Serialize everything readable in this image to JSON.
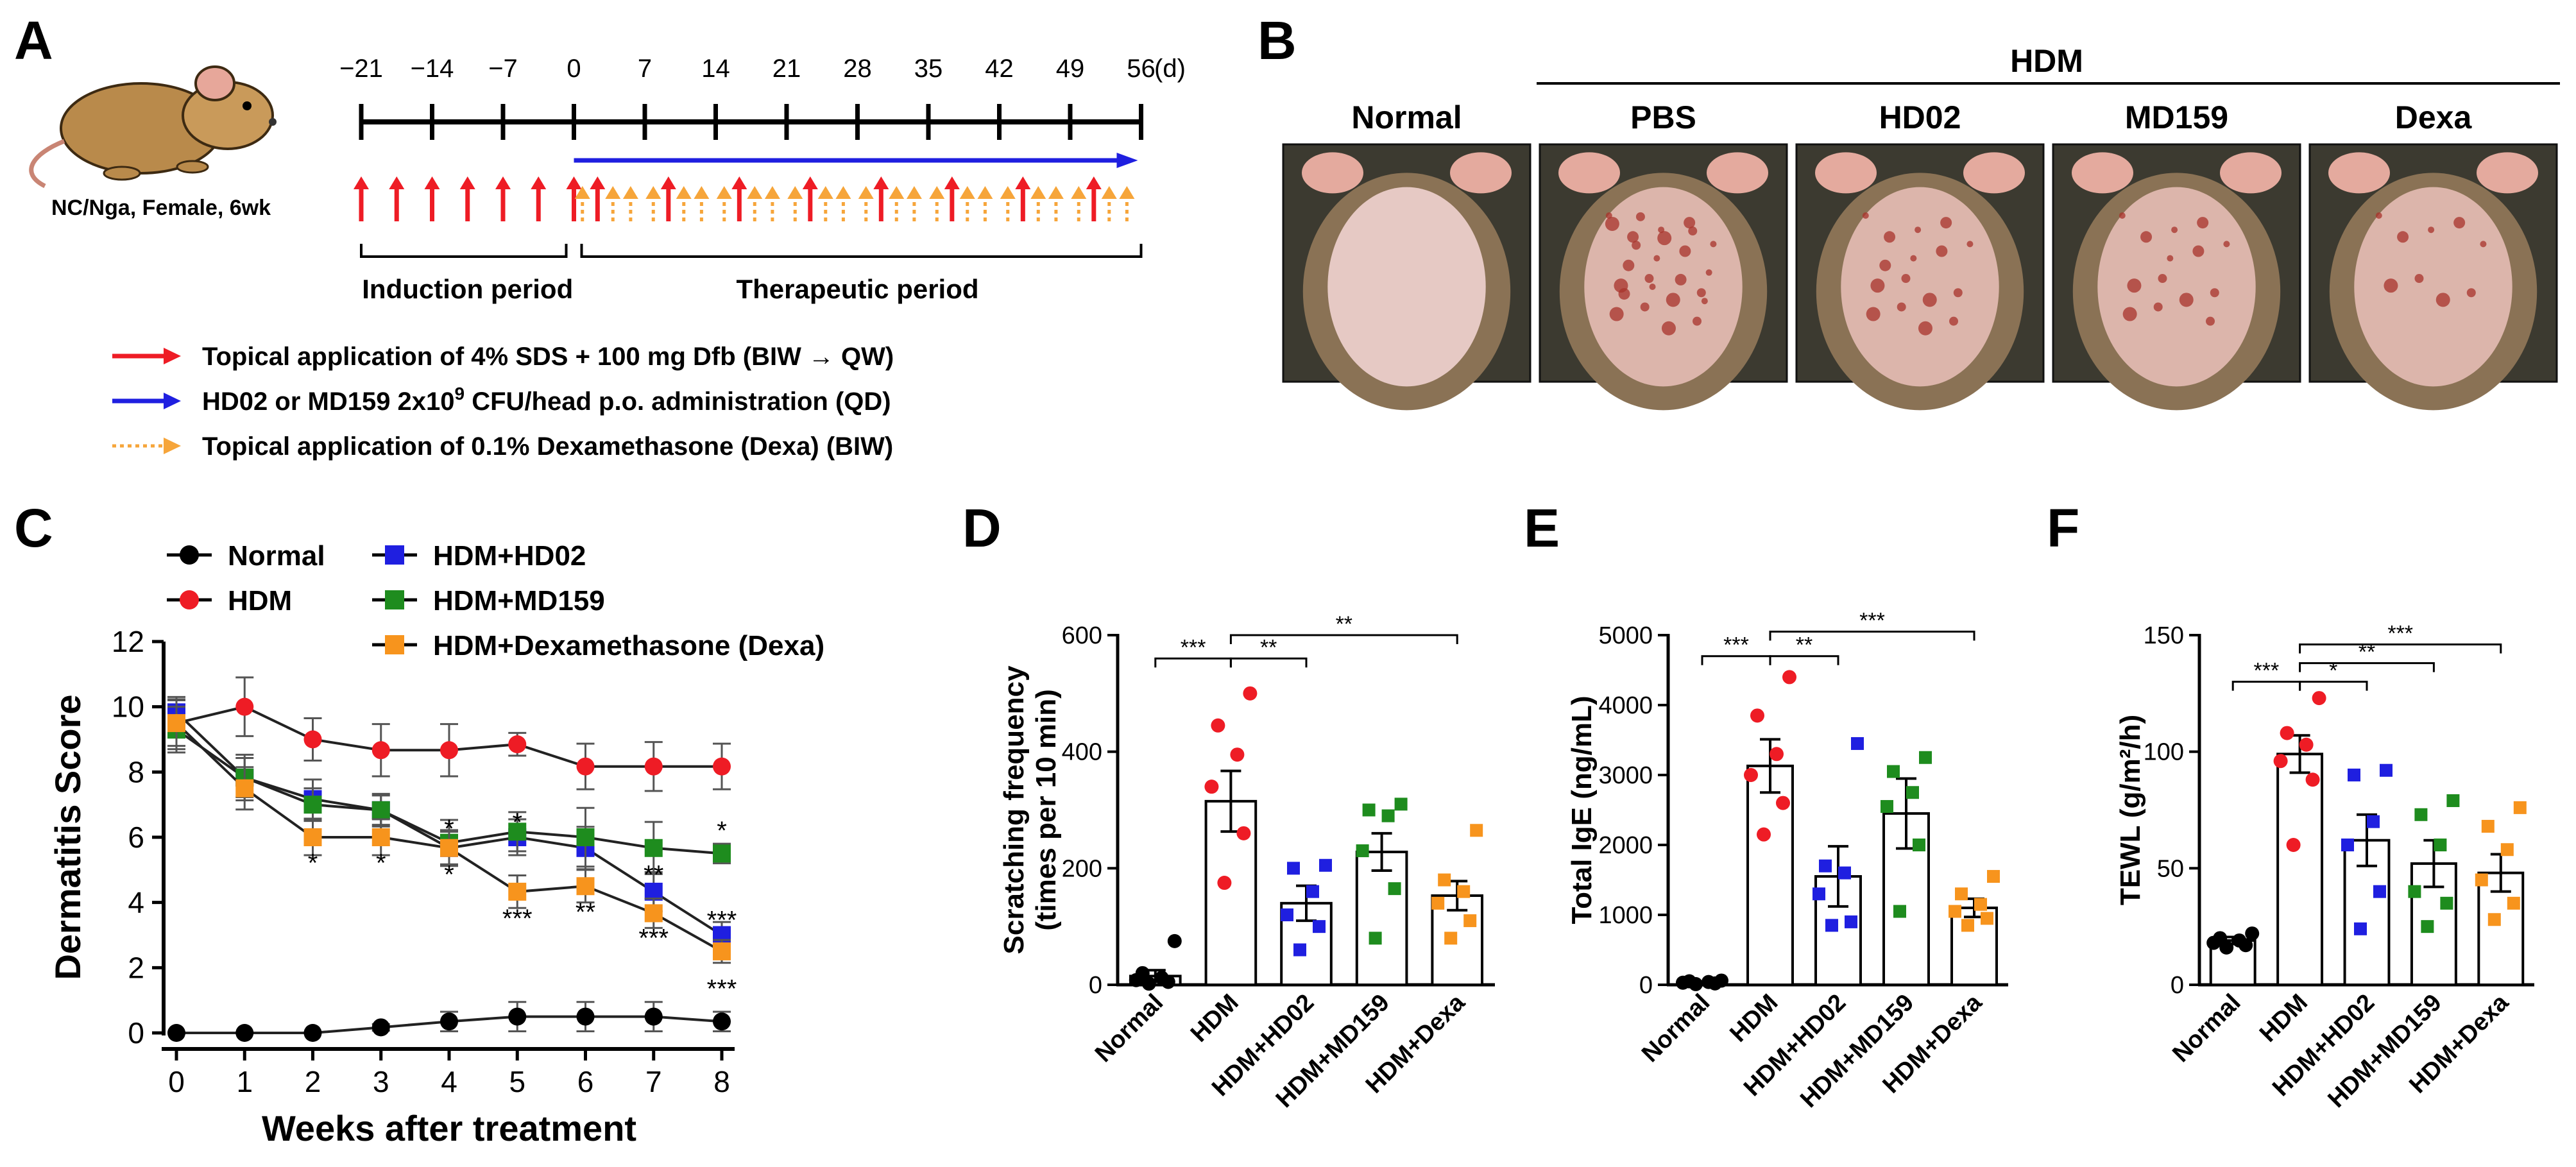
{
  "panels": {
    "A": {
      "letter": "A",
      "mouse_caption": "NC/Nga, Female, 6wk",
      "timeline_ticks": [
        "−21",
        "−14",
        "−7",
        "0",
        "7",
        "14",
        "21",
        "28",
        "35",
        "42",
        "49",
        "56"
      ],
      "timeline_unit": "(d)",
      "induction_label": "Induction period",
      "therapeutic_label": "Therapeutic period",
      "legend": [
        {
          "color": "#ee1c25",
          "style": "solid",
          "text_pre": "Topical application of 4% SDS + 100 mg Dfb (BIW → QW)",
          "sup": "",
          "text_post": ""
        },
        {
          "color": "#1f1fe0",
          "style": "solid",
          "text_pre": "HD02 or MD159 2x10",
          "sup": "9",
          "text_post": " CFU/head p.o. administration (QD)"
        },
        {
          "color": "#f6a53a",
          "style": "dotted",
          "text_pre": "Topical application of 0.1% Dexamethasone (Dexa) (BIW)",
          "sup": "",
          "text_post": ""
        }
      ],
      "colors": {
        "red": "#ee1c25",
        "blue": "#1f1fe0",
        "orange": "#f6a53a"
      }
    },
    "B": {
      "letter": "B",
      "group_header": "HDM",
      "photo_labels": [
        "Normal",
        "PBS",
        "HD02",
        "MD159",
        "Dexa"
      ]
    },
    "C": {
      "letter": "C"
    },
    "D": {
      "letter": "D"
    },
    "E": {
      "letter": "E"
    },
    "F": {
      "letter": "F"
    }
  },
  "chart_data": [
    {
      "id": "C",
      "type": "line",
      "title": "",
      "xlabel": "Weeks after treatment",
      "ylabel": "Dermatitis Score",
      "x": [
        0,
        1,
        2,
        3,
        4,
        5,
        6,
        7,
        8
      ],
      "xlim": [
        0,
        8
      ],
      "ylim": [
        0,
        12
      ],
      "yticks": [
        0,
        2,
        4,
        6,
        8,
        10,
        12
      ],
      "legend": [
        {
          "name": "Normal",
          "marker": "circle",
          "color": "#000000"
        },
        {
          "name": "HDM",
          "marker": "circle",
          "color": "#ee1c25"
        },
        {
          "name": "HDM+HD02",
          "marker": "square",
          "color": "#1f1fe0"
        },
        {
          "name": "HDM+MD159",
          "marker": "square",
          "color": "#1e8c1e"
        },
        {
          "name": "HDM+Dexamethasone (Dexa)",
          "marker": "square",
          "color": "#f7941d"
        }
      ],
      "series": [
        {
          "name": "Normal",
          "color": "#000000",
          "marker": "circle",
          "values": [
            0,
            0,
            0,
            0.17,
            0.35,
            0.5,
            0.5,
            0.5,
            0.35
          ],
          "errors": [
            0,
            0,
            0,
            0.1,
            0.3,
            0.45,
            0.45,
            0.45,
            0.3
          ]
        },
        {
          "name": "HDM",
          "color": "#ee1c25",
          "marker": "circle",
          "values": [
            9.5,
            10.0,
            9.0,
            8.67,
            8.67,
            8.85,
            8.17,
            8.17,
            8.17
          ],
          "errors": [
            0.8,
            0.9,
            0.65,
            0.8,
            0.8,
            0.35,
            0.7,
            0.75,
            0.7
          ]
        },
        {
          "name": "HDM+HD02",
          "color": "#1f1fe0",
          "marker": "square",
          "values": [
            9.83,
            7.83,
            7.17,
            6.83,
            5.67,
            6.0,
            5.67,
            4.33,
            3.0
          ],
          "errors": [
            0.4,
            0.7,
            0.6,
            0.45,
            0.5,
            0.55,
            0.65,
            0.6,
            0.4
          ]
        },
        {
          "name": "HDM+MD159",
          "color": "#1e8c1e",
          "marker": "square",
          "values": [
            9.3,
            7.83,
            7.0,
            6.83,
            5.83,
            6.17,
            6.0,
            5.67,
            5.5
          ],
          "errors": [
            0.7,
            0.6,
            0.5,
            0.5,
            0.7,
            0.6,
            0.9,
            0.8,
            0.3
          ]
        },
        {
          "name": "HDM+Dexamethasone (Dexa)",
          "color": "#f7941d",
          "marker": "square",
          "values": [
            9.5,
            7.5,
            6.0,
            6.0,
            5.67,
            4.33,
            4.5,
            3.67,
            2.5
          ],
          "errors": [
            0.7,
            0.65,
            0.55,
            0.55,
            0.55,
            0.5,
            0.5,
            0.45,
            0.35
          ]
        }
      ],
      "annotations": [
        {
          "x": 2,
          "y": 5.3,
          "text": "*"
        },
        {
          "x": 3,
          "y": 5.3,
          "text": "*"
        },
        {
          "x": 4,
          "y": 6.35,
          "text": "*"
        },
        {
          "x": 4,
          "y": 4.95,
          "text": "*"
        },
        {
          "x": 5,
          "y": 6.55,
          "text": "*"
        },
        {
          "x": 5,
          "y": 3.6,
          "text": "***"
        },
        {
          "x": 6,
          "y": 3.8,
          "text": "**"
        },
        {
          "x": 7,
          "y": 4.95,
          "text": "**"
        },
        {
          "x": 7,
          "y": 3.0,
          "text": "***"
        },
        {
          "x": 8,
          "y": 6.3,
          "text": "*"
        },
        {
          "x": 8,
          "y": 3.55,
          "text": "***"
        },
        {
          "x": 8,
          "y": 1.45,
          "text": "***"
        }
      ]
    },
    {
      "id": "D",
      "type": "bar",
      "title": "",
      "xlabel": "",
      "ylabel": "Scratching frequency\n(times per 10 min)",
      "ylim": [
        0,
        600
      ],
      "yticks": [
        0,
        200,
        400,
        600
      ],
      "categories": [
        "Normal",
        "HDM",
        "HDM+HD02",
        "HDM+MD159",
        "HDM+Dexa"
      ],
      "colors": [
        "#000000",
        "#ee1c25",
        "#1f1fe0",
        "#1e8c1e",
        "#f7941d"
      ],
      "values": [
        15,
        315,
        140,
        228,
        153
      ],
      "errors": [
        10,
        52,
        30,
        32,
        25
      ],
      "points": [
        [
          2,
          5,
          8,
          12,
          20,
          75
        ],
        [
          175,
          260,
          340,
          395,
          445,
          500
        ],
        [
          60,
          100,
          120,
          160,
          200,
          205
        ],
        [
          80,
          165,
          230,
          290,
          300,
          310
        ],
        [
          80,
          110,
          140,
          160,
          180,
          265
        ]
      ],
      "significance": [
        {
          "from": 0,
          "to": 1,
          "text": "***",
          "level": 560
        },
        {
          "from": 1,
          "to": 2,
          "text": "**",
          "level": 560
        },
        {
          "from": 1,
          "to": 4,
          "text": "**",
          "level": 600
        }
      ]
    },
    {
      "id": "E",
      "type": "bar",
      "title": "",
      "xlabel": "",
      "ylabel": "Total IgE (ng/mL)",
      "ylim": [
        0,
        5000
      ],
      "yticks": [
        0,
        1000,
        2000,
        3000,
        4000,
        5000
      ],
      "categories": [
        "Normal",
        "HDM",
        "HDM+HD02",
        "HDM+MD159",
        "HDM+Dexa"
      ],
      "colors": [
        "#000000",
        "#ee1c25",
        "#1f1fe0",
        "#1e8c1e",
        "#f7941d"
      ],
      "values": [
        30,
        3130,
        1550,
        2450,
        1100
      ],
      "errors": [
        15,
        380,
        430,
        500,
        130
      ],
      "points": [
        [
          10,
          20,
          30,
          40,
          50,
          60
        ],
        [
          2150,
          2600,
          3000,
          3300,
          3850,
          4400
        ],
        [
          850,
          900,
          1300,
          1600,
          1700,
          3450
        ],
        [
          1050,
          2000,
          2550,
          2750,
          3050,
          3250
        ],
        [
          850,
          950,
          1050,
          1150,
          1300,
          1550
        ]
      ],
      "significance": [
        {
          "from": 0,
          "to": 1,
          "text": "***",
          "level": 4700
        },
        {
          "from": 1,
          "to": 2,
          "text": "**",
          "level": 4700
        },
        {
          "from": 1,
          "to": 4,
          "text": "***",
          "level": 5050
        }
      ]
    },
    {
      "id": "F",
      "type": "bar",
      "title": "",
      "xlabel": "",
      "ylabel": "TEWL (g/m²/h)",
      "ylim": [
        0,
        150
      ],
      "yticks": [
        0,
        50,
        100,
        150
      ],
      "categories": [
        "Normal",
        "HDM",
        "HDM+HD02",
        "HDM+MD159",
        "HDM+Dexa"
      ],
      "colors": [
        "#000000",
        "#ee1c25",
        "#1f1fe0",
        "#1e8c1e",
        "#f7941d"
      ],
      "values": [
        19,
        99,
        62,
        52,
        48
      ],
      "errors": [
        1.5,
        8,
        11,
        10,
        8
      ],
      "points": [
        [
          16,
          17,
          18,
          19,
          20,
          22
        ],
        [
          60,
          88,
          96,
          103,
          108,
          123
        ],
        [
          24,
          40,
          60,
          70,
          90,
          92
        ],
        [
          25,
          35,
          40,
          60,
          73,
          79
        ],
        [
          28,
          35,
          45,
          58,
          68,
          76
        ]
      ],
      "significance": [
        {
          "from": 0,
          "to": 1,
          "text": "***",
          "level": 130
        },
        {
          "from": 1,
          "to": 2,
          "text": "*",
          "level": 130
        },
        {
          "from": 1,
          "to": 3,
          "text": "**",
          "level": 138
        },
        {
          "from": 1,
          "to": 4,
          "text": "***",
          "level": 146
        }
      ]
    }
  ]
}
